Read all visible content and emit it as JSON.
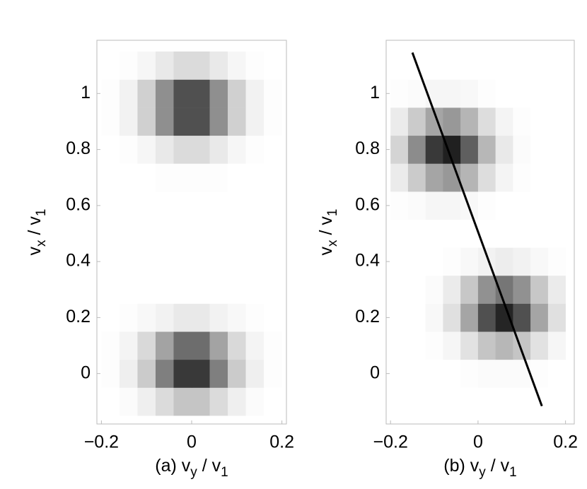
{
  "chart_data": [
    {
      "type": "heatmap",
      "xlabel": [
        "(a) v",
        "y",
        " / v",
        "1"
      ],
      "ylabel": [
        "v",
        "x",
        " / v",
        "1"
      ],
      "x_bins": [
        -0.2,
        -0.16,
        -0.12,
        -0.08,
        -0.04,
        0,
        0.04,
        0.08,
        0.12,
        0.16,
        0.2
      ],
      "y_bins": [
        -0.15,
        -0.05,
        0.05,
        0.15,
        0.25,
        0.35,
        0.45,
        0.55,
        0.65,
        0.75,
        0.85,
        0.95,
        1.05,
        1.15
      ],
      "values": [
        [
          0,
          0.02,
          0.07,
          0.16,
          0.26,
          0.26,
          0.16,
          0.07,
          0.02,
          0
        ],
        [
          0.01,
          0.07,
          0.23,
          0.57,
          0.88,
          0.88,
          0.57,
          0.23,
          0.07,
          0.01
        ],
        [
          0.01,
          0.05,
          0.17,
          0.41,
          0.65,
          0.65,
          0.41,
          0.17,
          0.05,
          0.01
        ],
        [
          0,
          0.01,
          0.03,
          0.06,
          0.1,
          0.1,
          0.06,
          0.03,
          0.01,
          0
        ],
        [
          0,
          0,
          0,
          0,
          0,
          0,
          0,
          0,
          0,
          0
        ],
        [
          0,
          0,
          0,
          0,
          0,
          0,
          0,
          0,
          0,
          0
        ],
        [
          0,
          0,
          0,
          0,
          0,
          0,
          0,
          0,
          0,
          0
        ],
        [
          0,
          0,
          0,
          0,
          0,
          0,
          0,
          0,
          0,
          0
        ],
        [
          0,
          0,
          0,
          0.01,
          0.01,
          0.01,
          0.01,
          0,
          0,
          0
        ],
        [
          0,
          0.01,
          0.04,
          0.1,
          0.16,
          0.16,
          0.1,
          0.04,
          0.01,
          0
        ],
        [
          0.01,
          0.06,
          0.21,
          0.5,
          0.78,
          0.78,
          0.5,
          0.21,
          0.06,
          0.01
        ],
        [
          0.01,
          0.06,
          0.21,
          0.5,
          0.78,
          0.78,
          0.5,
          0.21,
          0.06,
          0.01
        ],
        [
          0,
          0.01,
          0.04,
          0.1,
          0.16,
          0.16,
          0.1,
          0.04,
          0.01,
          0
        ]
      ],
      "xlim": [
        -0.21,
        0.21
      ],
      "ylim": [
        -0.18,
        1.19
      ],
      "xticks": [
        {
          "value": -0.2,
          "label": "−0.2"
        },
        0,
        0.2
      ],
      "yticks": [
        0,
        0.2,
        0.4,
        0.6,
        0.8,
        1
      ]
    },
    {
      "type": "heatmap",
      "xlabel": [
        "(b) v",
        "y",
        " / v",
        "1"
      ],
      "ylabel": [
        "v",
        "x",
        " / v",
        "1"
      ],
      "x_bins": [
        -0.2,
        -0.16,
        -0.12,
        -0.08,
        -0.04,
        0,
        0.04,
        0.08,
        0.12,
        0.16,
        0.2
      ],
      "y_bins": [
        -0.15,
        -0.05,
        0.05,
        0.15,
        0.25,
        0.35,
        0.45,
        0.55,
        0.65,
        0.75,
        0.85,
        0.95,
        1.05,
        1.15
      ],
      "values": [
        [
          0,
          0,
          0,
          0,
          0,
          0,
          0,
          0,
          0,
          0
        ],
        [
          0,
          0,
          0,
          0,
          0.01,
          0.02,
          0.02,
          0.02,
          0.01,
          0
        ],
        [
          0,
          0,
          0.01,
          0.04,
          0.13,
          0.26,
          0.32,
          0.26,
          0.13,
          0.04
        ],
        [
          0,
          0,
          0.03,
          0.14,
          0.4,
          0.78,
          0.97,
          0.78,
          0.4,
          0.14
        ],
        [
          0,
          0,
          0.02,
          0.09,
          0.25,
          0.49,
          0.61,
          0.49,
          0.25,
          0.09
        ],
        [
          0,
          0,
          0,
          0.01,
          0.03,
          0.06,
          0.08,
          0.06,
          0.03,
          0.01
        ],
        [
          0,
          0,
          0,
          0,
          0,
          0,
          0,
          0,
          0,
          0
        ],
        [
          0.01,
          0.02,
          0.04,
          0.04,
          0.03,
          0.01,
          0,
          0,
          0,
          0
        ],
        [
          0.09,
          0.23,
          0.4,
          0.46,
          0.33,
          0.15,
          0.05,
          0.01,
          0,
          0
        ],
        [
          0.19,
          0.51,
          0.88,
          0.99,
          0.71,
          0.32,
          0.1,
          0.02,
          0,
          0
        ],
        [
          0.09,
          0.23,
          0.4,
          0.46,
          0.33,
          0.15,
          0.05,
          0.01,
          0,
          0
        ],
        [
          0.01,
          0.02,
          0.04,
          0.04,
          0.03,
          0.01,
          0,
          0,
          0,
          0
        ],
        [
          0,
          0,
          0,
          0,
          0,
          0,
          0,
          0,
          0,
          0
        ]
      ],
      "line": {
        "x": [
          -0.15,
          0.146
        ],
        "y": [
          1.146,
          -0.116
        ],
        "color": "#000000"
      },
      "xlim": [
        -0.21,
        0.22
      ],
      "ylim": [
        -0.18,
        1.19
      ],
      "xticks": [
        {
          "value": -0.2,
          "label": "−0.2"
        },
        0,
        0.2
      ],
      "yticks": [
        0,
        0.2,
        0.4,
        0.6,
        0.8,
        1
      ]
    }
  ]
}
